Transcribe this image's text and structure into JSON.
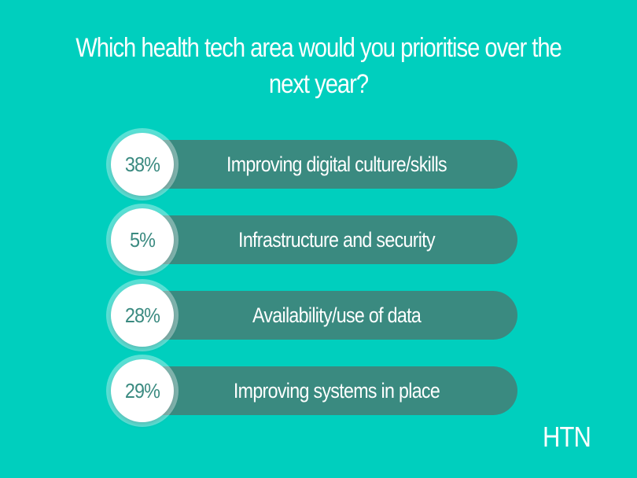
{
  "colors": {
    "background": "#00cfbe",
    "pill": "#3a8a80",
    "circle_text": "#3a8a80"
  },
  "chart_data": {
    "type": "bar",
    "title": "Which health tech area would you prioritise over the next year?",
    "categories": [
      "Improving digital culture/skills",
      "Infrastructure and security",
      "Availability/use of data",
      "Improving systems in place"
    ],
    "values": [
      38,
      5,
      28,
      29
    ],
    "value_labels": [
      "38%",
      "5%",
      "28%",
      "29%"
    ],
    "unit": "%"
  },
  "brand": {
    "logo_text": "HTN"
  }
}
